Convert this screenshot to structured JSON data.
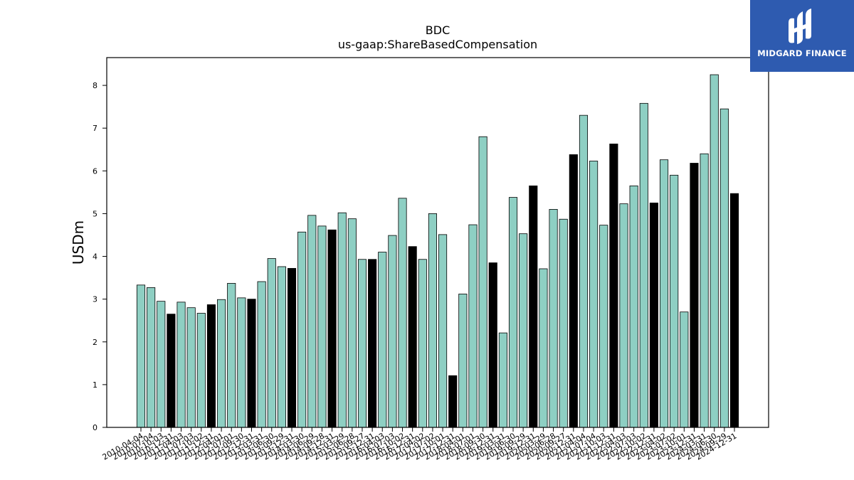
{
  "brand": {
    "name": "MIDGARD FINANCE",
    "logo_icon": "midgard-logo-icon",
    "color": "#2e5bb0"
  },
  "chart_data": {
    "type": "bar",
    "title": "BDC",
    "subtitle": "us-gaap:ShareBasedCompensation",
    "ylabel": "USDm",
    "xlabel": "",
    "ylim": [
      0,
      8.65
    ],
    "yticks": [
      0,
      1,
      2,
      3,
      4,
      5,
      6,
      7,
      8
    ],
    "grid": false,
    "colors": {
      "quarter": "#8ecfc3",
      "annual": "#000000",
      "edge": "#000000"
    },
    "bar_kinds": [
      "q",
      "q",
      "q",
      "a",
      "q",
      "q",
      "q",
      "a",
      "q",
      "q",
      "q",
      "a",
      "q",
      "q",
      "q",
      "a",
      "q",
      "q",
      "q",
      "a",
      "q",
      "q",
      "q",
      "a",
      "q",
      "q",
      "q",
      "a",
      "q",
      "q",
      "q",
      "a",
      "q",
      "q",
      "q",
      "a",
      "q",
      "q",
      "q",
      "a",
      "q",
      "q",
      "q",
      "a",
      "q",
      "q",
      "q",
      "a",
      "q",
      "q",
      "q",
      "a",
      "q",
      "q",
      "q",
      "a",
      "q",
      "q",
      "q",
      "a"
    ],
    "categories": [
      "2010-04-04",
      "2010-07-04",
      "2010-10-03",
      "2010-12-31",
      "2011-04-03",
      "2011-07-03",
      "2011-10-02",
      "2011-12-31",
      "2012-04-01",
      "2012-07-01",
      "2012-09-30",
      "2012-12-31",
      "2013-03-31",
      "2013-06-30",
      "2013-09-29",
      "2013-12-31",
      "2014-03-30",
      "2014-06-29",
      "2014-09-28",
      "2014-12-31",
      "2015-03-29",
      "2015-06-28",
      "2015-09-27",
      "2015-12-31",
      "2016-04-03",
      "2016-07-03",
      "2016-10-02",
      "2016-12-31",
      "2017-04-02",
      "2017-07-02",
      "2017-10-01",
      "2017-12-31",
      "2018-04-01",
      "2018-07-01",
      "2018-09-30",
      "2018-12-31",
      "2019-03-31",
      "2019-06-30",
      "2019-09-29",
      "2019-12-31",
      "2020-03-29",
      "2020-06-28",
      "2020-09-27",
      "2020-12-31",
      "2021-04-04",
      "2021-07-04",
      "2021-10-03",
      "2021-12-31",
      "2022-04-03",
      "2022-07-03",
      "2022-10-02",
      "2022-12-31",
      "2023-04-02",
      "2023-07-02",
      "2023-10-01",
      "2023-12-31",
      "2024-03-31",
      "2024-06-30",
      "2024-09-29",
      "2024-12-31"
    ],
    "values": [
      3.33,
      3.27,
      2.95,
      2.65,
      2.93,
      2.8,
      2.67,
      2.87,
      2.99,
      3.37,
      3.03,
      3.0,
      3.41,
      3.95,
      3.76,
      3.72,
      4.57,
      4.96,
      4.71,
      4.62,
      5.02,
      4.88,
      3.93,
      3.93,
      4.1,
      4.49,
      5.36,
      4.23,
      3.93,
      5.0,
      4.51,
      1.21,
      3.12,
      4.74,
      6.8,
      3.85,
      2.21,
      5.38,
      4.53,
      5.65,
      3.71,
      5.1,
      4.87,
      6.38,
      7.3,
      6.23,
      4.73,
      6.63,
      5.23,
      5.65,
      7.58,
      5.25,
      6.26,
      5.9,
      2.7,
      6.18,
      6.4,
      8.25,
      7.45,
      5.47
    ],
    "tick_label_rows": [
      "2010-04-04",
      "2010-07-04",
      "2010-10-03",
      "2010-12-31",
      "2011-04-03",
      "2011-07-03",
      "2011-10-02",
      "2011-12-31",
      "2012-04-01",
      "2012-07-01",
      "2012-09-30",
      "2012-12-31",
      "2013-03-31",
      "2013-06-30",
      "2013-09-29",
      "2013-12-31",
      "2014-03-30",
      "2014-06-29",
      "2014-09-28",
      "2014-12-31",
      "2015-03-29",
      "2015-06-28",
      "2015-09-27",
      "2015-12-31",
      "2016-04-03",
      "2016-07-03",
      "2016-10-02",
      "2016-12-31",
      "2017-04-02",
      "2017-07-02",
      "2017-10-01",
      "2017-12-31",
      "2018-04-01",
      "2018-07-01",
      "2018-09-30",
      "2018-12-31",
      "2019-03-31",
      "2019-06-30",
      "2019-09-29",
      "2019-12-31",
      "2020-03-29",
      "2020-06-28",
      "2020-09-27",
      "2020-12-31",
      "2021-04-04",
      "2021-07-04",
      "2021-10-03",
      "2021-12-31",
      "2022-04-03",
      "2022-07-03",
      "2022-10-02",
      "2022-12-31",
      "2023-04-02",
      "2023-07-02",
      "2023-10-01",
      "2023-12-31",
      "2024-03-31",
      "2024-06-30",
      "2024-09-29",
      "2024-12-31"
    ]
  }
}
